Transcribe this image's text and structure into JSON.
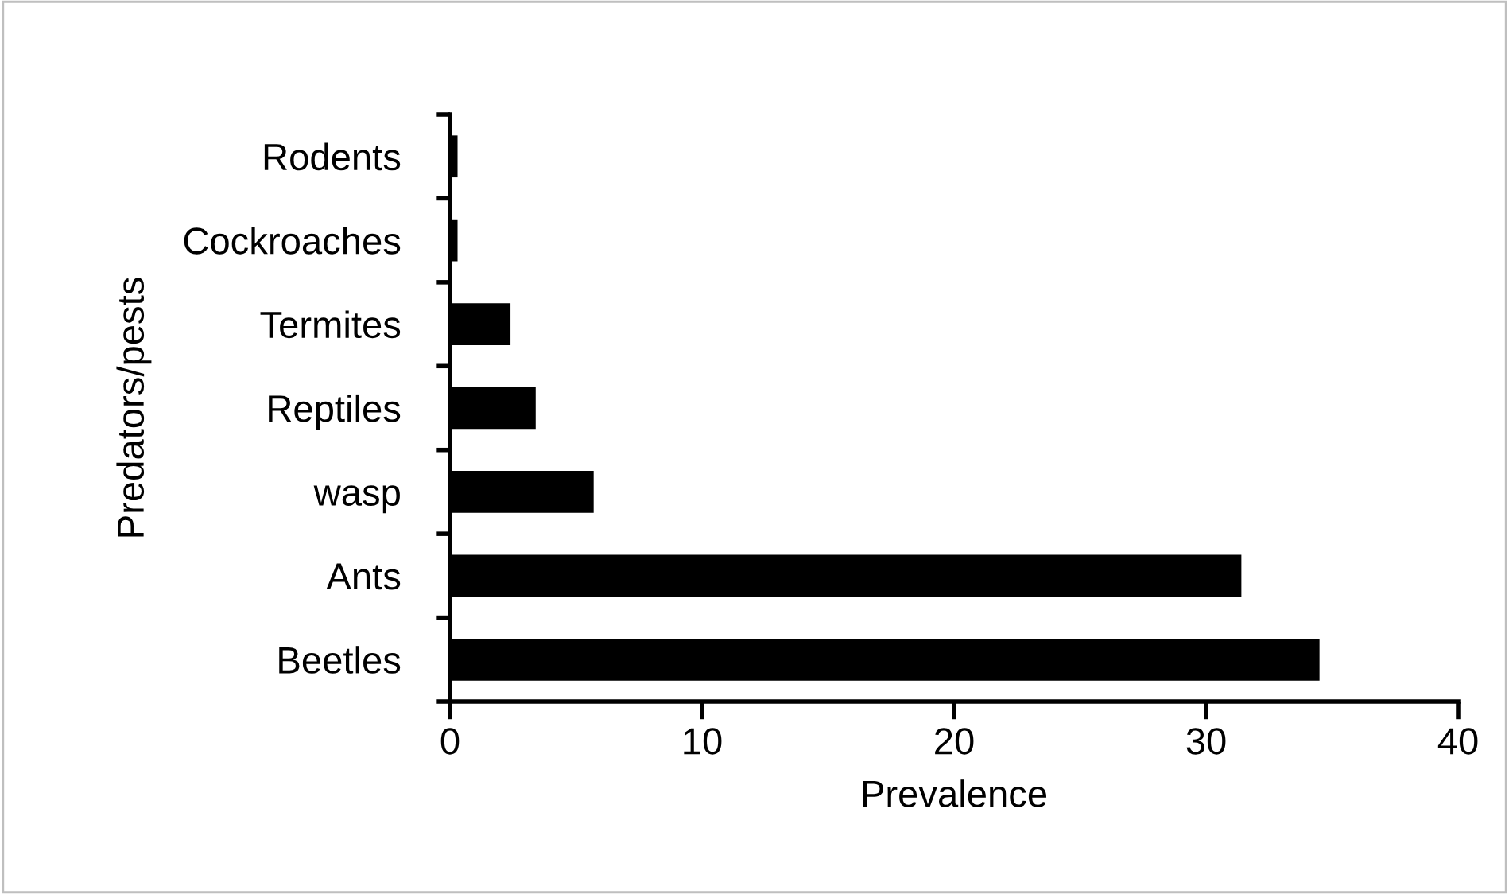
{
  "chart_data": {
    "type": "bar",
    "orientation": "horizontal",
    "xlabel": "Prevalence",
    "ylabel": "Predators/pests",
    "categories": [
      "Rodents",
      "Cockroaches",
      "Termites",
      "Reptiles",
      "wasp",
      "Ants",
      "Beetles"
    ],
    "values": [
      0.3,
      0.3,
      2.4,
      3.4,
      5.7,
      31.4,
      34.5
    ],
    "color": "#000000",
    "xlim": [
      0,
      40
    ],
    "xticks": [
      0,
      10,
      20,
      30,
      40
    ],
    "grid": false,
    "legend": false
  }
}
